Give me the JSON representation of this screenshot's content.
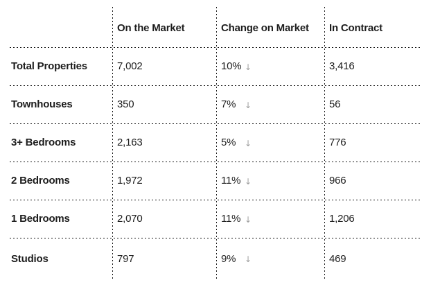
{
  "table": {
    "columns": [
      {
        "label": ""
      },
      {
        "label": "On the Market"
      },
      {
        "label": "Change on Market"
      },
      {
        "label": "In Contract"
      }
    ],
    "rows": [
      {
        "label": "Total Properties",
        "on_market": "7,002",
        "change": "10%",
        "in_contract": "3,416"
      },
      {
        "label": "Townhouses",
        "on_market": "350",
        "change": "7%",
        "in_contract": "56"
      },
      {
        "label": "3+ Bedrooms",
        "on_market": "2,163",
        "change": "5%",
        "in_contract": "776"
      },
      {
        "label": "2 Bedrooms",
        "on_market": "1,972",
        "change": "11%",
        "in_contract": "966"
      },
      {
        "label": "1 Bedrooms",
        "on_market": "2,070",
        "change": "11%",
        "in_contract": "1,206"
      },
      {
        "label": "Studios",
        "on_market": "797",
        "change": "9%",
        "in_contract": "469"
      }
    ],
    "arrow_glyph": "↓",
    "change_direction": "down",
    "colors": {
      "text": "#1d1d1d",
      "arrow": "#9c9c9c",
      "grid_line": "#161616",
      "background": "#ffffff"
    }
  },
  "chart_data": {
    "type": "table",
    "title": "",
    "columns": [
      "",
      "On the Market",
      "Change on Market",
      "In Contract"
    ],
    "rows": [
      [
        "Total Properties",
        "7,002",
        "10% ↓",
        "3,416"
      ],
      [
        "Townhouses",
        "350",
        "7% ↓",
        "56"
      ],
      [
        "3+ Bedrooms",
        "2,163",
        "5% ↓",
        "776"
      ],
      [
        "2 Bedrooms",
        "1,972",
        "11% ↓",
        "966"
      ],
      [
        "1 Bedrooms",
        "2,070",
        "11% ↓",
        "1,206"
      ],
      [
        "Studios",
        "797",
        "9% ↓",
        "469"
      ]
    ],
    "notes": "All change-on-market values trend down (gray down arrow)"
  }
}
